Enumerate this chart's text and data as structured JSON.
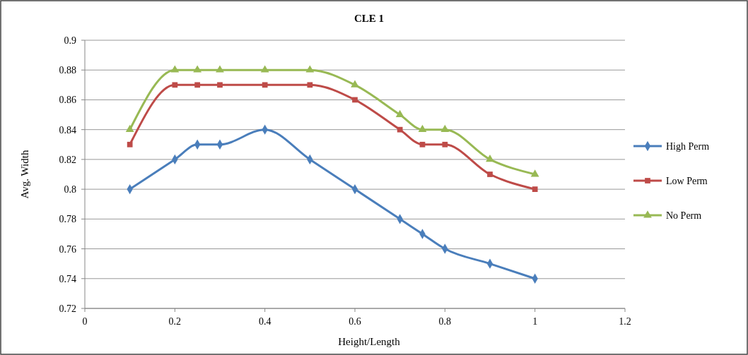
{
  "chart_data": {
    "type": "line",
    "title": "CLE 1",
    "xlabel": "Height/Length",
    "ylabel": "Avg. Width",
    "x": [
      0.1,
      0.2,
      0.25,
      0.3,
      0.4,
      0.5,
      0.6,
      0.7,
      0.75,
      0.8,
      0.9,
      1.0
    ],
    "series": [
      {
        "name": "High Perm",
        "color": "#4a7ebb",
        "marker": "diamond",
        "values": [
          0.8,
          0.82,
          0.83,
          0.83,
          0.84,
          0.82,
          0.8,
          0.78,
          0.77,
          0.76,
          0.75,
          0.74
        ]
      },
      {
        "name": "Low Perm",
        "color": "#be4b48",
        "marker": "square",
        "values": [
          0.83,
          0.87,
          0.87,
          0.87,
          0.87,
          0.87,
          0.86,
          0.84,
          0.83,
          0.83,
          0.81,
          0.8
        ]
      },
      {
        "name": "No Perm",
        "color": "#98b954",
        "marker": "triangle",
        "values": [
          0.84,
          0.88,
          0.88,
          0.88,
          0.88,
          0.88,
          0.87,
          0.85,
          0.84,
          0.84,
          0.82,
          0.81
        ]
      }
    ],
    "xlim": [
      0,
      1.2
    ],
    "xticks": [
      0,
      0.2,
      0.4,
      0.6,
      0.8,
      1,
      1.2
    ],
    "ylim": [
      0.72,
      0.9
    ],
    "yticks": [
      0.72,
      0.74,
      0.76,
      0.78,
      0.8,
      0.82,
      0.84,
      0.86,
      0.88,
      0.9
    ],
    "grid": "y",
    "legend": "right",
    "line_style": "solid"
  }
}
